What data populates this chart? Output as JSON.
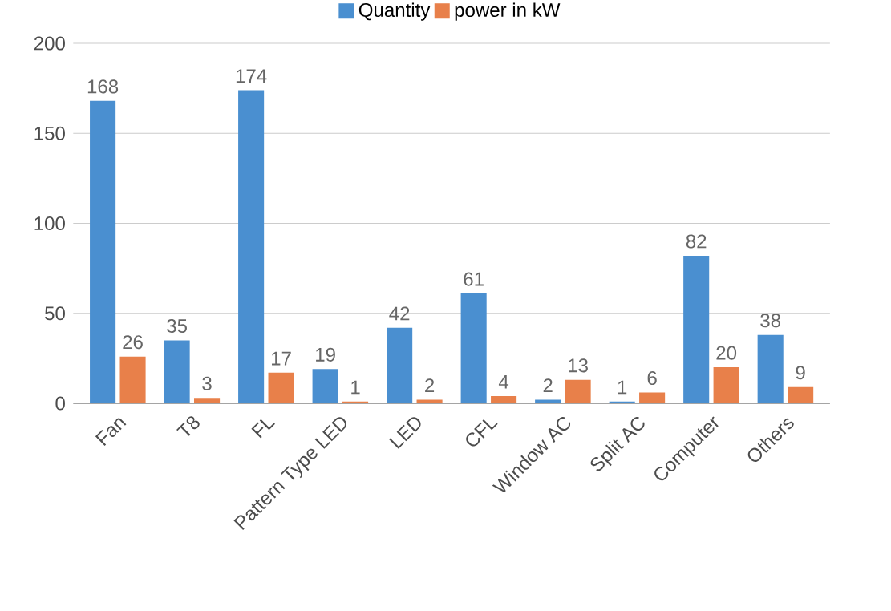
{
  "chart_data": {
    "type": "bar",
    "categories": [
      "Fan",
      "T8",
      "FL",
      "Pattern Type LED",
      "LED",
      "CFL",
      "Window AC",
      "Split AC",
      "Computer",
      "Others"
    ],
    "series": [
      {
        "name": "Quantity",
        "color": "#4a8fd0",
        "values": [
          168,
          35,
          174,
          19,
          42,
          61,
          2,
          1,
          82,
          38
        ]
      },
      {
        "name": "power in kW",
        "color": "#e8804a",
        "values": [
          26,
          3,
          17,
          1,
          2,
          4,
          13,
          6,
          20,
          9
        ]
      }
    ],
    "ylim": [
      0,
      200
    ],
    "yticks": [
      0,
      50,
      100,
      150,
      200
    ],
    "grid": "y",
    "legend": "top",
    "data_labels": true
  }
}
